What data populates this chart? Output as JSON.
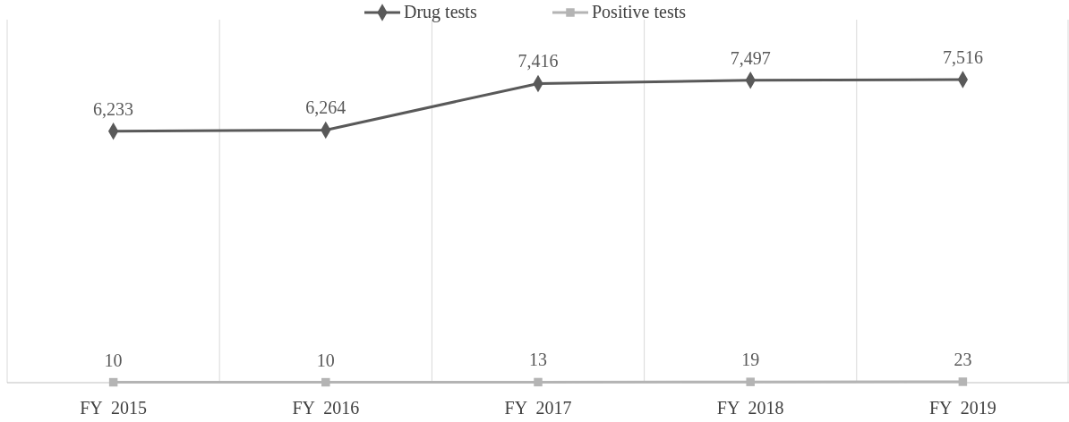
{
  "chart_data": {
    "type": "line",
    "categories": [
      "FY  2015",
      "FY  2016",
      "FY  2017",
      "FY  2018",
      "FY  2019"
    ],
    "series": [
      {
        "name": "Drug tests",
        "color": "#595959",
        "marker": "diamond",
        "values": [
          6233,
          6264,
          7416,
          7497,
          7516
        ],
        "value_labels": [
          "6,233",
          "6,264",
          "7,416",
          "7,497",
          "7,516"
        ]
      },
      {
        "name": "Positive tests",
        "color": "#b4b4b4",
        "marker": "square",
        "values": [
          10,
          10,
          13,
          19,
          23
        ],
        "value_labels": [
          "10",
          "10",
          "13",
          "19",
          "23"
        ]
      }
    ],
    "ylim": [
      0,
      9000
    ],
    "grid": "x",
    "legend": "top",
    "tick_labels": "x"
  }
}
